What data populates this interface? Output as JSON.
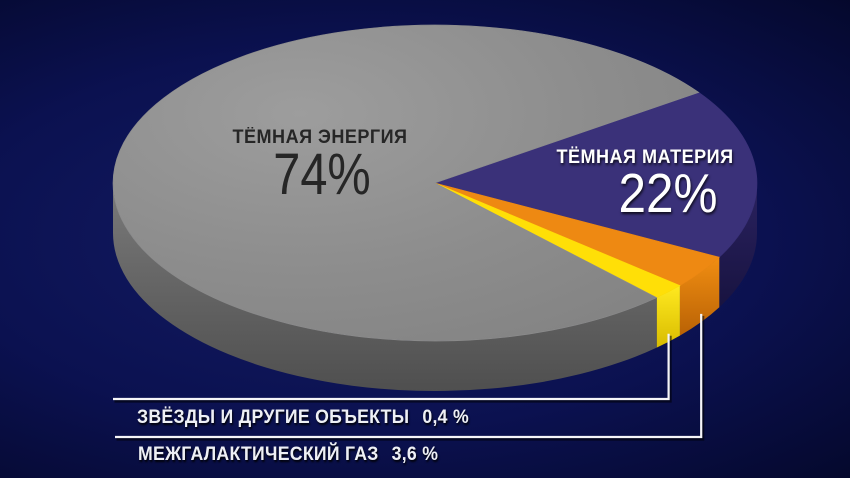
{
  "chart_data": {
    "type": "pie",
    "style": "3d",
    "unit": "%",
    "legend": "none",
    "slices": [
      {
        "id": "dark_energy",
        "label": "ТЁМНАЯ ЭНЕРГИЯ",
        "value": 74,
        "display_value": "74%",
        "color": "#8c8c8c",
        "label_color": "#262626"
      },
      {
        "id": "dark_matter",
        "label": "ТЁМНАЯ МАТЕРИЯ",
        "value": 22,
        "display_value": "22%",
        "color": "#3a3179",
        "label_color": "#ffffff"
      },
      {
        "id": "intergalactic_gas",
        "label": "МЕЖГАЛАКТИЧЕСКИЙ ГАЗ",
        "value": 3.6,
        "display_value": "3,6 %",
        "color": "#ee8912",
        "label_color": "#eef0f5"
      },
      {
        "id": "stars_and_other_objects",
        "label": "ЗВЁЗДЫ И ДРУГИЕ ОБЪЕКТЫ",
        "value": 0.4,
        "display_value": "0,4 %",
        "color": "#ffdf07",
        "label_color": "#eef0f5"
      }
    ]
  },
  "colors": {
    "background_center": "#131c64",
    "background_mid": "#0b1150",
    "background_edge": "#010107",
    "leader_line": "#f5f5f8"
  }
}
